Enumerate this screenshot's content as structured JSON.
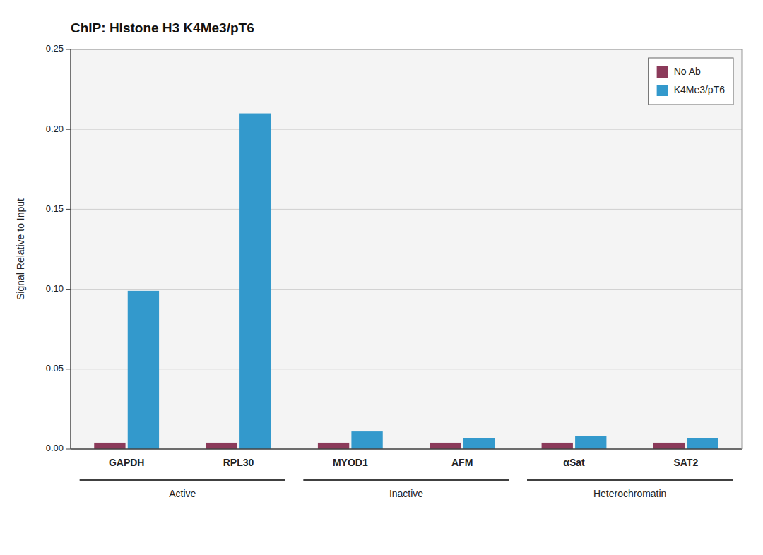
{
  "chart_data": {
    "type": "bar",
    "title": "ChIP: Histone H3 K4Me3/pT6",
    "ylabel": "Signal Relative to Input",
    "categories": [
      "GAPDH",
      "RPL30",
      "MYOD1",
      "AFM",
      "αSat",
      "SAT2"
    ],
    "series": [
      {
        "name": "No Ab",
        "color": "#8B3A5A",
        "values": [
          0.004,
          0.004,
          0.004,
          0.004,
          0.004,
          0.004
        ]
      },
      {
        "name": "K4Me3/pT6",
        "color": "#3399CC",
        "values": [
          0.099,
          0.21,
          0.011,
          0.007,
          0.008,
          0.007
        ]
      }
    ],
    "groups": [
      {
        "label": "Active",
        "span": [
          0,
          1
        ]
      },
      {
        "label": "Inactive",
        "span": [
          2,
          3
        ]
      },
      {
        "label": "Heterochromatin",
        "span": [
          4,
          5
        ]
      }
    ],
    "ylim": [
      0.0,
      0.25
    ],
    "yticks": [
      {
        "value": 0.0,
        "label": "0.00"
      },
      0.05,
      {
        "value": 0.1,
        "label": "0.10"
      },
      0.15,
      {
        "value": 0.2,
        "label": "0.20"
      },
      0.25
    ],
    "grid": true,
    "legend": "upper right"
  }
}
